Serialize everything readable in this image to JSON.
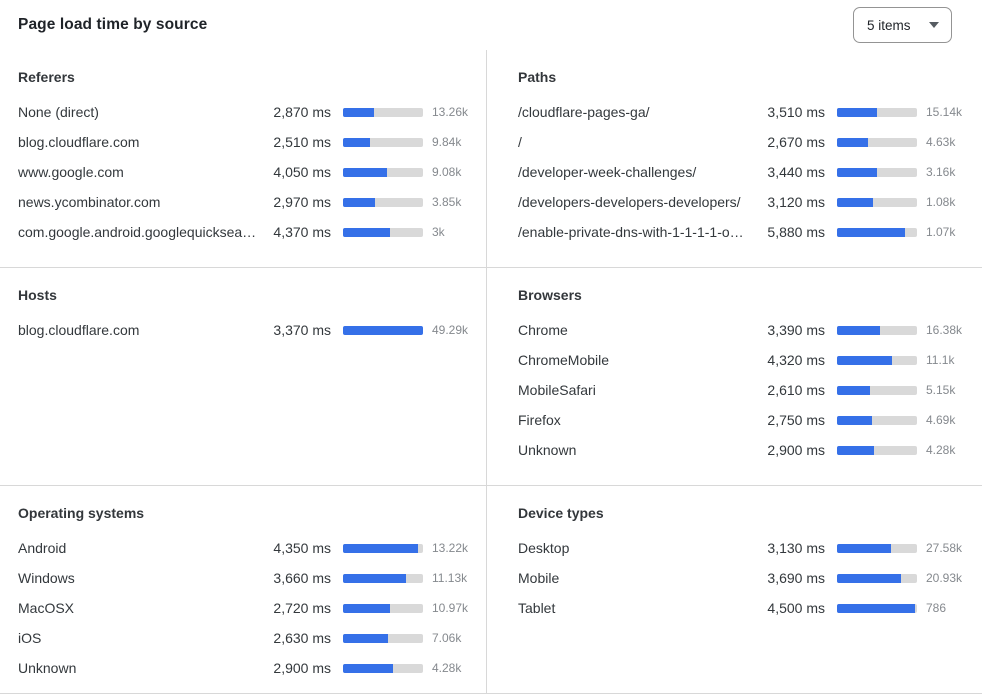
{
  "header": {
    "title": "Page load time by source",
    "items_select": {
      "value": "5 items"
    }
  },
  "colors": {
    "bar_fill": "#3570e8",
    "bar_track": "#d9d9d9"
  },
  "chart_data": [
    {
      "type": "bar",
      "orientation": "horizontal",
      "title": "Referers",
      "xlim_ms": [
        0,
        7450
      ],
      "categories": [
        "None (direct)",
        "blog.cloudflare.com",
        "www.google.com",
        "news.ycombinator.com",
        "com.google.android.googlequicksearc…"
      ],
      "values_ms": [
        2870,
        2510,
        4050,
        2970,
        4370
      ],
      "value_labels": [
        "2,870 ms",
        "2,510 ms",
        "4,050 ms",
        "2,970 ms",
        "4,370 ms"
      ],
      "counts": [
        13260,
        9840,
        9080,
        3850,
        3000
      ],
      "count_labels": [
        "13.26k",
        "9.84k",
        "9.08k",
        "3.85k",
        "3k"
      ]
    },
    {
      "type": "bar",
      "orientation": "horizontal",
      "title": "Paths",
      "xlim_ms": [
        0,
        6950
      ],
      "categories": [
        "/cloudflare-pages-ga/",
        "/",
        "/developer-week-challenges/",
        "/developers-developers-developers/",
        "/enable-private-dns-with-1-1-1-1-on-…"
      ],
      "values_ms": [
        3510,
        2670,
        3440,
        3120,
        5880
      ],
      "value_labels": [
        "3,510 ms",
        "2,670 ms",
        "3,440 ms",
        "3,120 ms",
        "5,880 ms"
      ],
      "counts": [
        15140,
        4630,
        3160,
        1080,
        1070
      ],
      "count_labels": [
        "15.14k",
        "4.63k",
        "3.16k",
        "1.08k",
        "1.07k"
      ]
    },
    {
      "type": "bar",
      "orientation": "horizontal",
      "title": "Hosts",
      "xlim_ms": [
        0,
        3370
      ],
      "categories": [
        "blog.cloudflare.com"
      ],
      "values_ms": [
        3370
      ],
      "value_labels": [
        "3,370 ms"
      ],
      "counts": [
        49290
      ],
      "count_labels": [
        "49.29k"
      ]
    },
    {
      "type": "bar",
      "orientation": "horizontal",
      "title": "Browsers",
      "xlim_ms": [
        0,
        6300
      ],
      "categories": [
        "Chrome",
        "ChromeMobile",
        "MobileSafari",
        "Firefox",
        "Unknown"
      ],
      "values_ms": [
        3390,
        4320,
        2610,
        2750,
        2900
      ],
      "value_labels": [
        "3,390 ms",
        "4,320 ms",
        "2,610 ms",
        "2,750 ms",
        "2,900 ms"
      ],
      "counts": [
        16380,
        11100,
        5150,
        4690,
        4280
      ],
      "count_labels": [
        "16.38k",
        "11.1k",
        "5.15k",
        "4.69k",
        "4.28k"
      ]
    },
    {
      "type": "bar",
      "orientation": "horizontal",
      "title": "Operating systems",
      "xlim_ms": [
        0,
        4650
      ],
      "categories": [
        "Android",
        "Windows",
        "MacOSX",
        "iOS",
        "Unknown"
      ],
      "values_ms": [
        4350,
        3660,
        2720,
        2630,
        2900
      ],
      "value_labels": [
        "4,350 ms",
        "3,660 ms",
        "2,720 ms",
        "2,630 ms",
        "2,900 ms"
      ],
      "counts": [
        13220,
        11130,
        10970,
        7060,
        4280
      ],
      "count_labels": [
        "13.22k",
        "11.13k",
        "10.97k",
        "7.06k",
        "4.28k"
      ]
    },
    {
      "type": "bar",
      "orientation": "horizontal",
      "title": "Device types",
      "xlim_ms": [
        0,
        4600
      ],
      "categories": [
        "Desktop",
        "Mobile",
        "Tablet"
      ],
      "values_ms": [
        3130,
        3690,
        4500
      ],
      "value_labels": [
        "3,130 ms",
        "3,690 ms",
        "4,500 ms"
      ],
      "counts": [
        27580,
        20930,
        786
      ],
      "count_labels": [
        "27.58k",
        "20.93k",
        "786"
      ]
    }
  ]
}
